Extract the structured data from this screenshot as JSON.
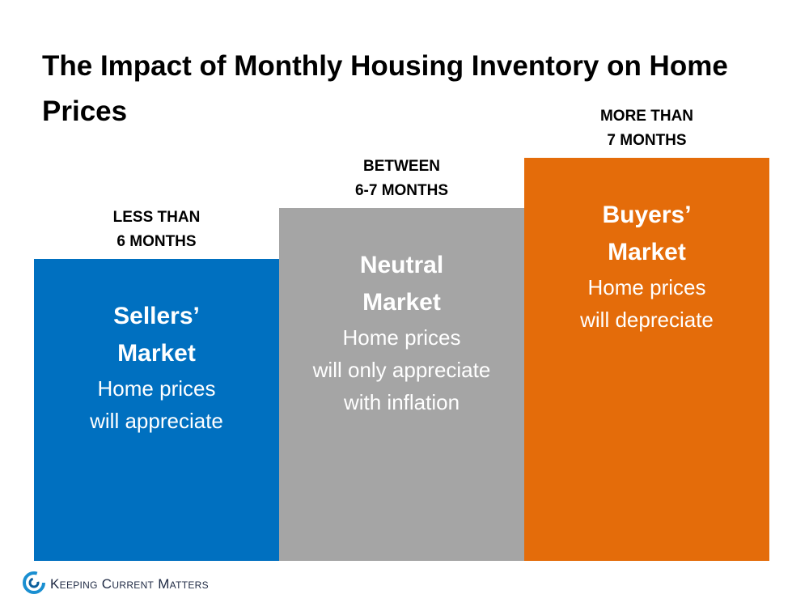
{
  "title": "The Impact of Monthly Housing Inventory on Home Prices",
  "columns": [
    {
      "label": [
        "LESS THAN",
        "6 MONTHS"
      ],
      "heading": [
        "Sellers’",
        "Market"
      ],
      "description": [
        "Home prices",
        "will appreciate"
      ]
    },
    {
      "label": [
        "BETWEEN",
        "6-7 MONTHS"
      ],
      "heading": [
        "Neutral",
        "Market"
      ],
      "description": [
        "Home prices",
        "will only appreciate",
        "with inflation"
      ]
    },
    {
      "label": [
        "MORE THAN",
        "7 MONTHS"
      ],
      "heading": [
        "Buyers’",
        "Market"
      ],
      "description": [
        "Home prices",
        "will depreciate"
      ]
    }
  ],
  "logo": "Keeping Current Matters"
}
